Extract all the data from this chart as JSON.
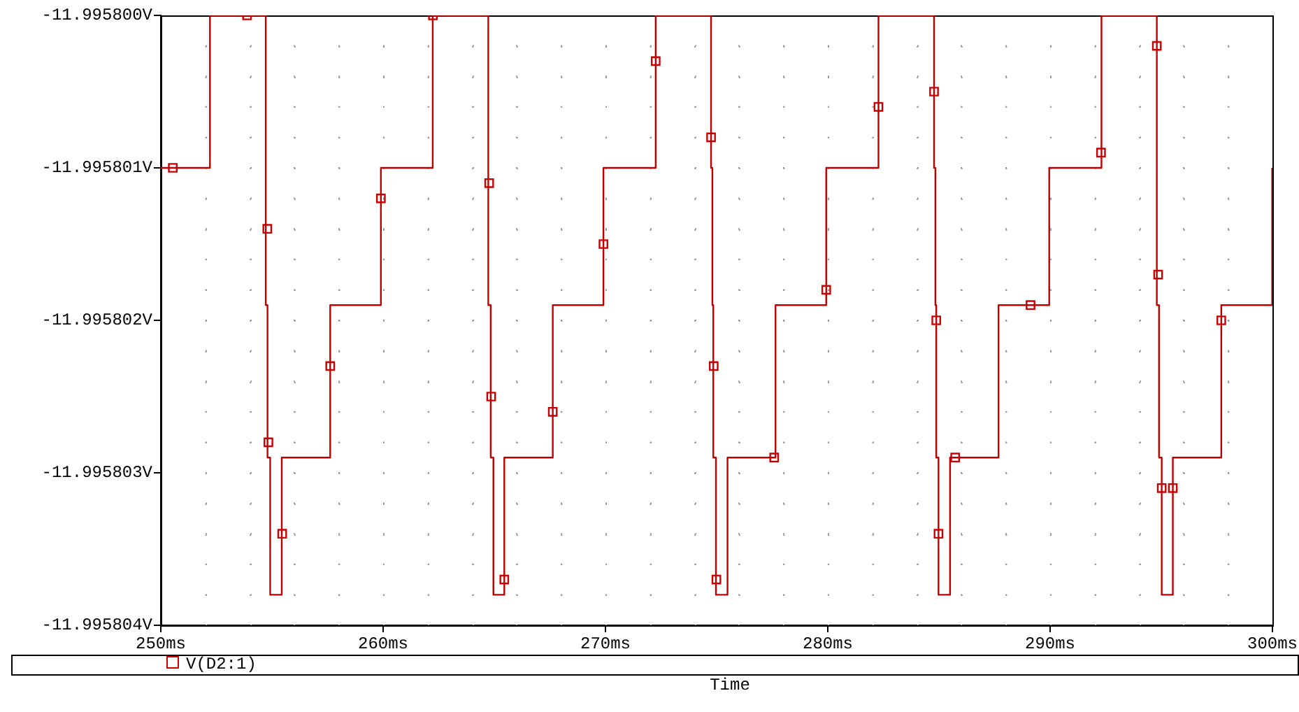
{
  "chart_data": {
    "type": "line",
    "xlabel": "Time",
    "legend": "bottom",
    "grid": true,
    "xlim": [
      250,
      300
    ],
    "xticks": [
      {
        "value": 250,
        "label": "250ms"
      },
      {
        "value": 260,
        "label": "260ms"
      },
      {
        "value": 270,
        "label": "270ms"
      },
      {
        "value": 280,
        "label": "280ms"
      },
      {
        "value": 290,
        "label": "290ms"
      },
      {
        "value": 300,
        "label": "300ms"
      }
    ],
    "ylim": [
      -11.995804,
      -11.9958
    ],
    "yticks": [
      {
        "value": -11.995804,
        "label": "-11.995804V"
      },
      {
        "value": -11.995803,
        "label": "-11.995803V"
      },
      {
        "value": -11.995802,
        "label": "-11.995802V"
      },
      {
        "value": -11.995801,
        "label": "-11.995801V"
      },
      {
        "value": -11.9958,
        "label": "-11.995800V"
      }
    ],
    "series": [
      {
        "type": "line",
        "color": "#c00000",
        "marker": "none",
        "line_style": "solid",
        "x": [
          250,
          252.21,
          252.21,
          254.72,
          254.72,
          254.8,
          254.8,
          254.92,
          254.92,
          255.44,
          255.44,
          257.62,
          257.62,
          259.9,
          259.9,
          262.23,
          262.23,
          264.73,
          264.73,
          264.84,
          264.84,
          264.96,
          264.96,
          265.45,
          265.45,
          267.63,
          267.63,
          269.91,
          269.91,
          272.26,
          272.26,
          274.75,
          274.75,
          274.81,
          274.81,
          274.85,
          274.85,
          274.97,
          274.97,
          275.49,
          275.49,
          277.65,
          277.65,
          279.93,
          279.93,
          282.28,
          282.28,
          284.78,
          284.78,
          284.84,
          284.84,
          284.88,
          284.88,
          284.98,
          284.98,
          285.5,
          285.5,
          287.68,
          287.68,
          289.96,
          289.96,
          292.31,
          292.31,
          294.8,
          294.8,
          294.9,
          294.9,
          295.02,
          295.02,
          295.52,
          295.52,
          297.7,
          297.7,
          299.98,
          299.98,
          300
        ],
        "values": [
          -11.995801,
          -11.995801,
          -11.9958,
          -11.9958,
          -11.9958019,
          -11.9958019,
          -11.9958029,
          -11.9958029,
          -11.9958038,
          -11.9958038,
          -11.9958029,
          -11.9958029,
          -11.9958019,
          -11.9958019,
          -11.995801,
          -11.995801,
          -11.9958,
          -11.9958,
          -11.9958019,
          -11.9958019,
          -11.9958029,
          -11.9958029,
          -11.9958038,
          -11.9958038,
          -11.9958029,
          -11.9958029,
          -11.9958019,
          -11.9958019,
          -11.995801,
          -11.995801,
          -11.9958,
          -11.9958,
          -11.995801,
          -11.995801,
          -11.9958019,
          -11.9958019,
          -11.9958029,
          -11.9958029,
          -11.9958038,
          -11.9958038,
          -11.9958029,
          -11.9958029,
          -11.9958019,
          -11.9958019,
          -11.995801,
          -11.995801,
          -11.9958,
          -11.9958,
          -11.995801,
          -11.995801,
          -11.9958019,
          -11.9958019,
          -11.9958029,
          -11.9958029,
          -11.9958038,
          -11.9958038,
          -11.9958029,
          -11.9958029,
          -11.9958019,
          -11.9958019,
          -11.995801,
          -11.995801,
          -11.9958,
          -11.9958,
          -11.9958019,
          -11.9958019,
          -11.9958029,
          -11.9958029,
          -11.9958038,
          -11.9958038,
          -11.9958029,
          -11.9958029,
          -11.9958019,
          -11.9958019,
          -11.995801,
          -11.995801
        ]
      },
      {
        "type": "scatter",
        "name": "V(D2:1)",
        "color": "#cc0000",
        "marker": "square",
        "x": [
          250.54,
          253.88,
          254.79,
          254.84,
          255.46,
          257.62,
          259.9,
          262.24,
          264.77,
          264.86,
          265.45,
          267.63,
          269.91,
          272.26,
          274.75,
          274.87,
          274.99,
          277.59,
          279.93,
          282.28,
          284.78,
          284.88,
          284.98,
          285.73,
          289.12,
          292.29,
          294.8,
          294.86,
          295.02,
          295.52,
          297.7
        ],
        "values": [
          -11.995801,
          -11.9958,
          -11.9958014,
          -11.9958028,
          -11.9958034,
          -11.9958023,
          -11.9958012,
          -11.9958,
          -11.9958011,
          -11.9958025,
          -11.9958037,
          -11.9958026,
          -11.9958015,
          -11.9958003,
          -11.9958008,
          -11.9958023,
          -11.9958037,
          -11.9958029,
          -11.9958018,
          -11.9958006,
          -11.9958005,
          -11.995802,
          -11.9958034,
          -11.9958029,
          -11.9958019,
          -11.9958009,
          -11.9958002,
          -11.9958017,
          -11.9958031,
          -11.9958031,
          -11.995802
        ]
      }
    ]
  }
}
